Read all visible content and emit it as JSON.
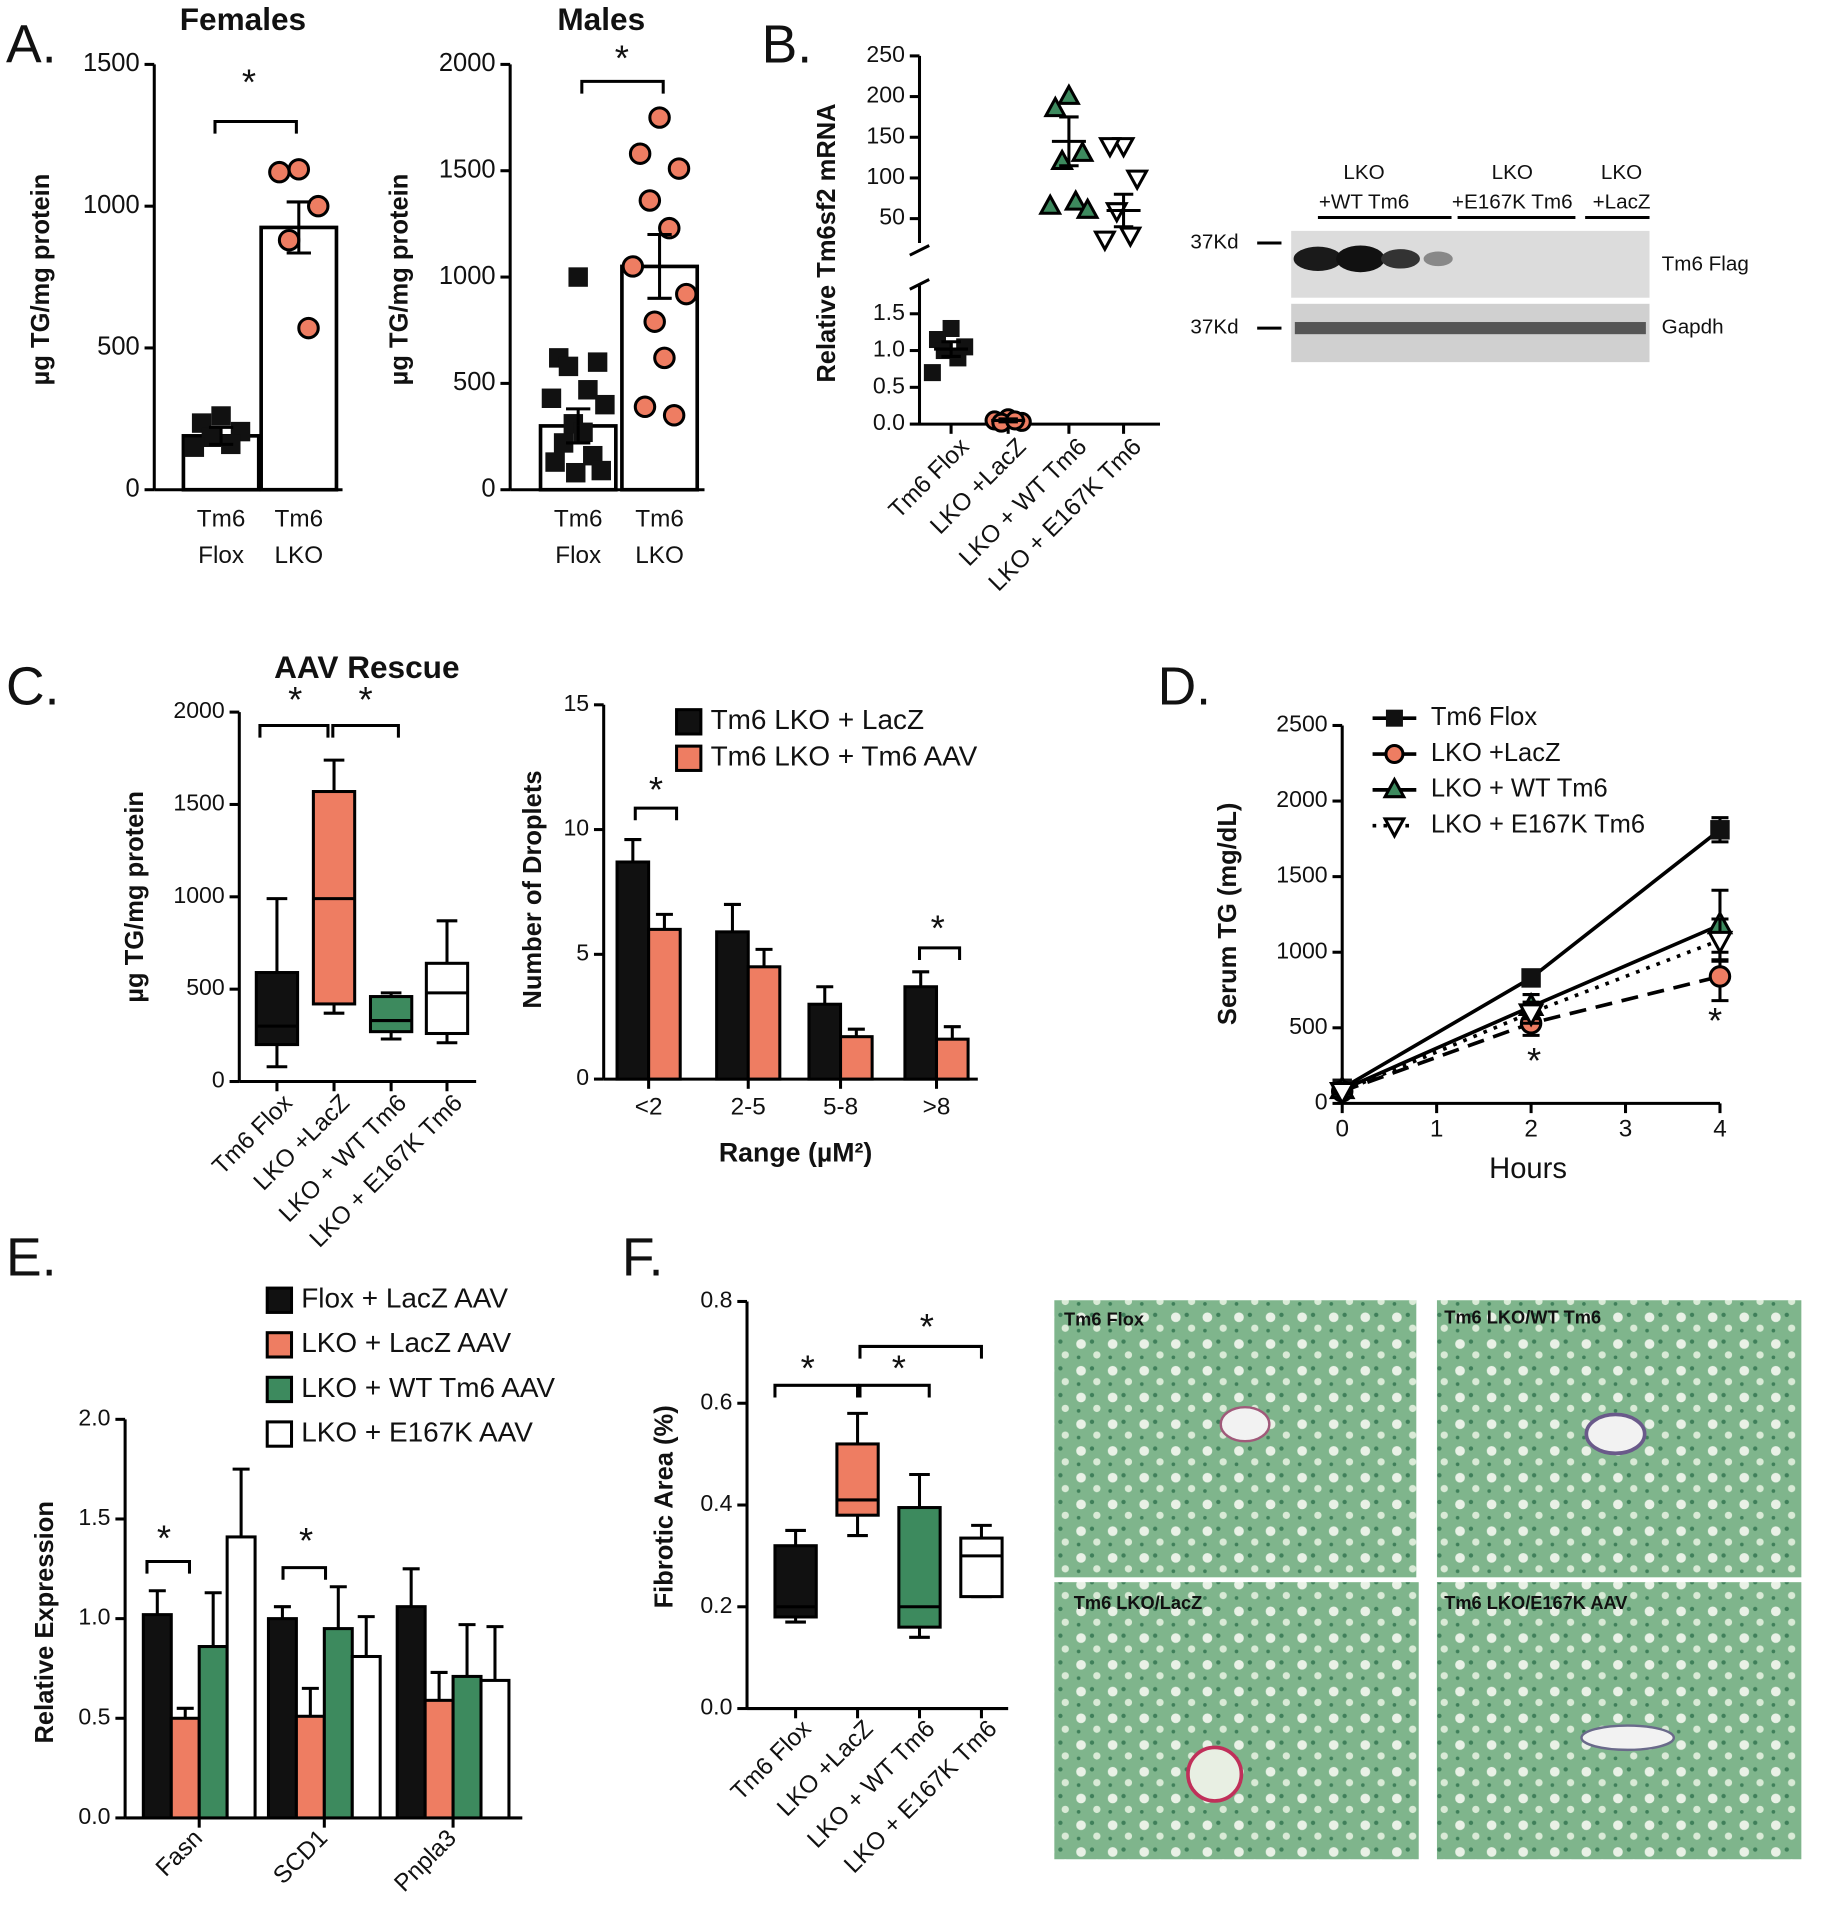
{
  "panel_labels": [
    "A.",
    "B.",
    "C.",
    "D.",
    "E.",
    "F."
  ],
  "blot": {
    "groups": [
      [
        "LKO",
        "+WT Tm6"
      ],
      [
        "LKO",
        "+E167K Tm6"
      ],
      [
        "LKO",
        "+LacZ"
      ]
    ],
    "markers": [
      "37Kd",
      "37Kd"
    ],
    "rows": [
      "Tm6 Flag",
      "Gapdh"
    ]
  },
  "histology": {
    "labels": [
      "Tm6 Flox",
      "Tm6 LKO/WT Tm6",
      "Tm6 LKO/LacZ",
      "Tm6 LKO/E167K AAV"
    ]
  },
  "chart_data": [
    {
      "type": "bar_scatter",
      "title": "Females",
      "ylabel": "µg TG/mg protein",
      "categories": [
        [
          "Tm6",
          "Flox"
        ],
        [
          "Tm6",
          "LKO"
        ]
      ],
      "values": [
        190,
        925
      ],
      "errors": [
        30,
        90
      ],
      "points": [
        [
          260,
          235,
          205,
          185,
          160,
          150
        ],
        [
          1130,
          1120,
          1000,
          880,
          570
        ]
      ],
      "markers": [
        "square",
        "circle"
      ],
      "colors": [
        "#111111",
        "#ee7d62"
      ],
      "ylim": [
        0,
        1500
      ],
      "yticks": [
        0,
        500,
        1000,
        1500
      ],
      "annotations": [
        "*"
      ]
    },
    {
      "type": "bar_scatter",
      "title": "Males",
      "ylabel": "µg TG/mg protein",
      "categories": [
        [
          "Tm6",
          "Flox"
        ],
        [
          "Tm6",
          "LKO"
        ]
      ],
      "values": [
        300,
        1050
      ],
      "errors": [
        80,
        150
      ],
      "points": [
        [
          1000,
          620,
          600,
          580,
          470,
          430,
          400,
          310,
          270,
          220,
          160,
          130,
          90,
          80
        ],
        [
          1750,
          1580,
          1510,
          1360,
          1230,
          1050,
          920,
          790,
          620,
          390,
          350
        ]
      ],
      "markers": [
        "square",
        "circle"
      ],
      "colors": [
        "#111111",
        "#ee7d62"
      ],
      "ylim": [
        0,
        2000
      ],
      "yticks": [
        0,
        500,
        1000,
        1500,
        2000
      ],
      "annotations": [
        "*"
      ]
    },
    {
      "type": "scatter_broken",
      "ylabel": "Relative Tm6sf2 mRNA",
      "categories": [
        "Tm6 Flox",
        "LKO +LacZ",
        "LKO + WT Tm6",
        "LKO + E167K Tm6"
      ],
      "segments": [
        {
          "ylim": [
            0,
            1.9
          ],
          "yticks": [
            {
              "value": 0,
              "label": "0.0"
            },
            {
              "value": 0.5,
              "label": "0.5"
            },
            {
              "value": 1,
              "label": "1.0"
            },
            {
              "value": 1.5,
              "label": "1.5"
            }
          ]
        },
        {
          "ylim": [
            20,
            250
          ],
          "yticks": [
            50,
            100,
            150,
            200,
            250
          ]
        }
      ],
      "groups": [
        {
          "segment": 0,
          "marker": "square",
          "color": "#111111",
          "points": [
            1.3,
            1.15,
            1.05,
            1.0,
            0.9,
            0.7
          ],
          "mean": 1.02,
          "error": 0.1
        },
        {
          "segment": 0,
          "marker": "circle",
          "color": "#ee7d62",
          "points": [
            0.08,
            0.05,
            0.03,
            0.02,
            0.05
          ],
          "mean": 0.05,
          "error": 0.02
        },
        {
          "segment": 1,
          "marker": "triangle",
          "color": "#3d8a5e",
          "points": [
            200,
            185,
            130,
            120,
            70,
            65,
            60
          ],
          "mean": 145,
          "error": 30
        },
        {
          "segment": 1,
          "marker": "triangle-down",
          "color": "#ffffff",
          "points": [
            140,
            140,
            100,
            60,
            30,
            25
          ],
          "mean": 60,
          "error": 20
        }
      ]
    },
    {
      "type": "box",
      "title": "AAV Rescue",
      "ylabel": "µg TG/mg protein",
      "categories": [
        "Tm6 Flox",
        "LKO +LacZ",
        "LKO + WT Tm6",
        "LKO + E167K Tm6"
      ],
      "boxes": [
        {
          "color": "#111111",
          "min": 80,
          "q1": 200,
          "median": 300,
          "q3": 590,
          "max": 990
        },
        {
          "color": "#ee7d62",
          "min": 370,
          "q1": 420,
          "median": 990,
          "q3": 1570,
          "max": 1740
        },
        {
          "color": "#3d8a5e",
          "min": 230,
          "q1": 270,
          "median": 330,
          "q3": 460,
          "max": 480
        },
        {
          "color": "#ffffff",
          "min": 210,
          "q1": 260,
          "median": 480,
          "q3": 640,
          "max": 870
        }
      ],
      "ylim": [
        0,
        2000
      ],
      "yticks": [
        0,
        500,
        1000,
        1500,
        2000
      ],
      "annotations": [
        "*",
        "*"
      ]
    },
    {
      "type": "grouped_bar",
      "ylabel": "Number of Droplets",
      "xlabel": "Range (µM²)",
      "categories": [
        "<2",
        "2-5",
        "5-8",
        ">8"
      ],
      "series": [
        {
          "name": "Tm6 LKO + LacZ",
          "color": "#111111",
          "values": [
            8.7,
            5.9,
            3.0,
            3.7
          ],
          "errors": [
            0.9,
            1.1,
            0.7,
            0.6
          ]
        },
        {
          "name": "Tm6 LKO + Tm6 AAV",
          "color": "#ee7d62",
          "values": [
            6.0,
            4.5,
            1.7,
            1.6
          ],
          "errors": [
            0.6,
            0.7,
            0.3,
            0.5
          ]
        }
      ],
      "ylim": [
        0,
        15
      ],
      "yticks": [
        0,
        5,
        10,
        15
      ],
      "annotations": [
        "*",
        "*"
      ]
    },
    {
      "type": "line",
      "ylabel": "Serum TG (mg/dL)",
      "xlabel": "Hours",
      "x": [
        0,
        2,
        4
      ],
      "series": [
        {
          "name": "Tm6 Flox",
          "color": "#111111",
          "marker": "square",
          "dash": "solid",
          "values": [
            100,
            830,
            1810
          ],
          "errors": [
            20,
            30,
            80
          ]
        },
        {
          "name": "LKO +LacZ",
          "color": "#ee7d62",
          "marker": "circle",
          "dash": "dashed",
          "values": [
            80,
            530,
            840
          ],
          "errors": [
            30,
            80,
            160
          ]
        },
        {
          "name": "LKO + WT Tm6",
          "color": "#3d8a5e",
          "marker": "triangle",
          "dash": "solid",
          "values": [
            90,
            640,
            1180
          ],
          "errors": [
            20,
            80,
            230
          ]
        },
        {
          "name": "LKO + E167K Tm6",
          "color": "#ffffff",
          "marker": "triangle-down",
          "dash": "dotted",
          "values": [
            80,
            600,
            1080
          ],
          "errors": [
            20,
            70,
            140
          ]
        }
      ],
      "xlim": [
        0,
        4
      ],
      "xticks": [
        0,
        1,
        2,
        3,
        4
      ],
      "ylim": [
        0,
        2500
      ],
      "yticks": [
        0,
        500,
        1000,
        1500,
        2000,
        2500
      ],
      "annotations": [
        "*",
        "*"
      ]
    },
    {
      "type": "grouped_bar",
      "ylabel": "Relative Expression",
      "categories": [
        "Fasn",
        "SCD1",
        "Pnpla3"
      ],
      "series": [
        {
          "name": "Flox + LacZ AAV",
          "color": "#111111",
          "values": [
            1.02,
            1.0,
            1.06
          ],
          "errors": [
            0.12,
            0.06,
            0.19
          ]
        },
        {
          "name": "LKO + LacZ AAV",
          "color": "#ee7d62",
          "values": [
            0.5,
            0.51,
            0.59
          ],
          "errors": [
            0.05,
            0.14,
            0.14
          ]
        },
        {
          "name": "LKO + WT Tm6 AAV",
          "color": "#3d8a5e",
          "values": [
            0.86,
            0.95,
            0.71
          ],
          "errors": [
            0.27,
            0.21,
            0.26
          ]
        },
        {
          "name": "LKO + E167K AAV",
          "color": "#ffffff",
          "values": [
            1.41,
            0.81,
            0.69
          ],
          "errors": [
            0.34,
            0.2,
            0.27
          ]
        }
      ],
      "ylim": [
        0,
        2
      ],
      "yticks": [
        {
          "value": 0,
          "label": "0.0"
        },
        {
          "value": 0.5,
          "label": "0.5"
        },
        {
          "value": 1,
          "label": "1.0"
        },
        {
          "value": 1.5,
          "label": "1.5"
        },
        {
          "value": 2,
          "label": "2.0"
        }
      ],
      "rotate_labels": true,
      "annotations": [
        "*",
        "*"
      ]
    },
    {
      "type": "box",
      "ylabel": "Fibrotic Area (%)",
      "categories": [
        "Tm6 Flox",
        "LKO +LacZ",
        "LKO + WT Tm6",
        "LKO + E167K Tm6"
      ],
      "boxes": [
        {
          "color": "#111111",
          "min": 0.17,
          "q1": 0.18,
          "median": 0.2,
          "q3": 0.32,
          "max": 0.35
        },
        {
          "color": "#ee7d62",
          "min": 0.34,
          "q1": 0.38,
          "median": 0.41,
          "q3": 0.52,
          "max": 0.58
        },
        {
          "color": "#3d8a5e",
          "min": 0.14,
          "q1": 0.16,
          "median": 0.2,
          "q3": 0.395,
          "max": 0.46
        },
        {
          "color": "#ffffff",
          "min": 0.22,
          "q1": 0.22,
          "median": 0.3,
          "q3": 0.335,
          "max": 0.36
        }
      ],
      "ylim": [
        0,
        0.8
      ],
      "yticks": [
        {
          "value": 0,
          "label": "0.0"
        },
        {
          "value": 0.2,
          "label": "0.2"
        },
        {
          "value": 0.4,
          "label": "0.4"
        },
        {
          "value": 0.6,
          "label": "0.6"
        },
        {
          "value": 0.8,
          "label": "0.8"
        }
      ],
      "annotations": [
        "*",
        "*",
        "*"
      ]
    }
  ]
}
